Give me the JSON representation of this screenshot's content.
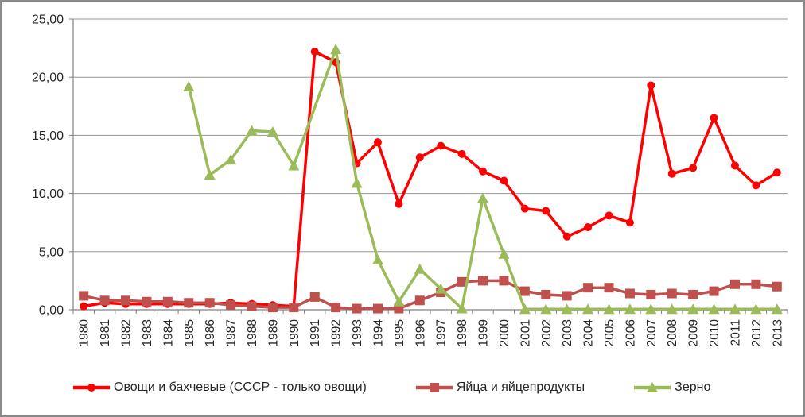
{
  "figure": {
    "background": "#FFFFFF",
    "border_color": "#8A8A8A"
  },
  "chart_data": {
    "type": "line",
    "title": "",
    "xlabel": "",
    "ylabel": "",
    "grid": true,
    "legend_position": "bottom",
    "ylim": [
      0,
      25
    ],
    "y_tick_labels": [
      "0,00",
      "5,00",
      "10,00",
      "15,00",
      "20,00",
      "25,00"
    ],
    "categories": [
      "1980",
      "1981",
      "1982",
      "1983",
      "1984",
      "1985",
      "1986",
      "1987",
      "1988",
      "1989",
      "1990",
      "1991",
      "1992",
      "1993",
      "1994",
      "1995",
      "1996",
      "1997",
      "1998",
      "1999",
      "2000",
      "2001",
      "2002",
      "2003",
      "2004",
      "2005",
      "2006",
      "2007",
      "2008",
      "2009",
      "2010",
      "2011",
      "2012",
      "2013"
    ],
    "series": [
      {
        "id": "vegetables",
        "name": "Овощи и бахчевые (СССР - только овощи)",
        "color": "#FF0000",
        "marker": "circle",
        "values": [
          0.3,
          0.6,
          0.5,
          0.5,
          0.5,
          0.5,
          0.5,
          0.6,
          0.5,
          0.4,
          0.3,
          22.2,
          21.3,
          12.6,
          14.4,
          9.1,
          13.1,
          14.1,
          13.4,
          11.9,
          11.1,
          8.7,
          8.5,
          6.3,
          7.1,
          8.1,
          7.5,
          19.3,
          11.7,
          12.2,
          16.5,
          12.4,
          10.7,
          11.8
        ]
      },
      {
        "id": "eggs",
        "name": "Яйца и яйцепродукты",
        "color": "#C0504D",
        "marker": "square",
        "values": [
          1.2,
          0.8,
          0.8,
          0.7,
          0.7,
          0.6,
          0.6,
          0.4,
          0.3,
          0.2,
          0.2,
          1.1,
          0.2,
          0.1,
          0.1,
          0.1,
          0.8,
          1.5,
          2.4,
          2.5,
          2.5,
          1.6,
          1.3,
          1.2,
          1.9,
          1.9,
          1.4,
          1.3,
          1.4,
          1.3,
          1.6,
          2.2,
          2.2,
          2.0
        ]
      },
      {
        "id": "grain",
        "name": "Зерно",
        "color": "#9BBB59",
        "marker": "triangle",
        "values": [
          null,
          null,
          null,
          null,
          null,
          19.2,
          11.6,
          12.9,
          15.4,
          15.3,
          12.4,
          null,
          22.4,
          10.9,
          4.3,
          0.7,
          3.5,
          1.8,
          0.1,
          9.6,
          4.8,
          0.05,
          0.05,
          0.05,
          0.05,
          0.05,
          0.05,
          0.05,
          0.05,
          0.05,
          0.05,
          0.05,
          0.05,
          0.05
        ]
      }
    ],
    "style": {
      "gridline_color": "#969696",
      "axis_color": "#808080",
      "text_color": "#262626",
      "line_width": 3.5,
      "tick_font_size": 15.5,
      "y_label_font_size": 16
    }
  }
}
